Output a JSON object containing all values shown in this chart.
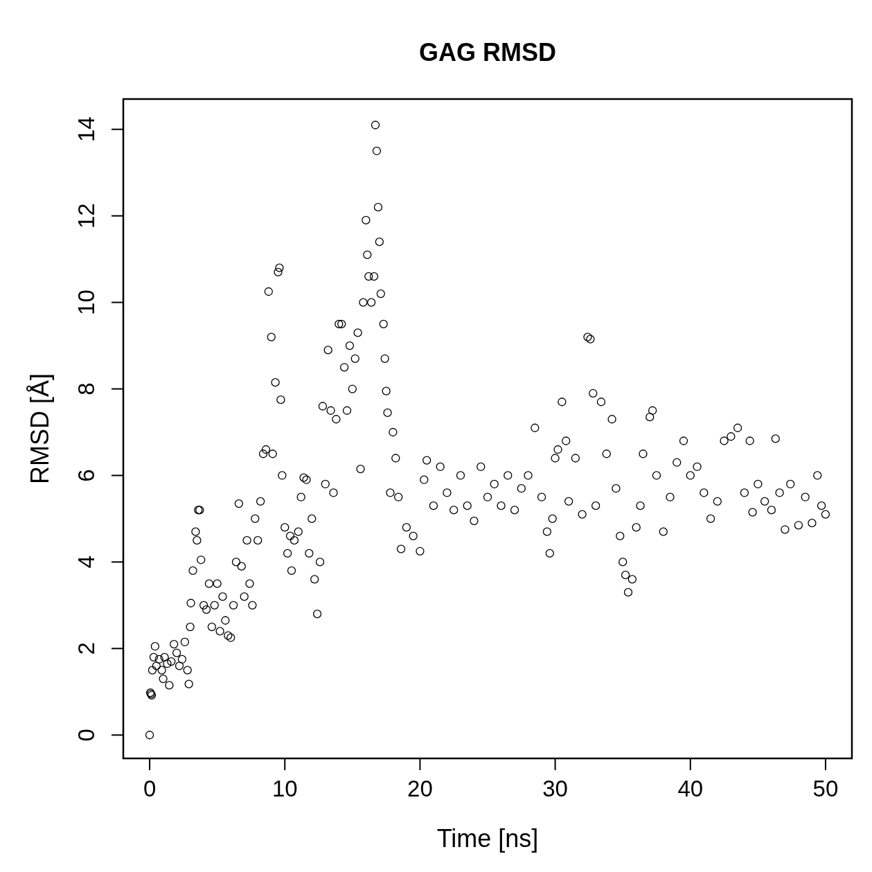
{
  "chart_data": {
    "type": "scatter",
    "title": "GAG RMSD",
    "xlabel": "Time [ns]",
    "ylabel": "RMSD [Å]",
    "marker": "circle",
    "color": "#000000",
    "xlim": [
      -1.95,
      51.95
    ],
    "ylim": [
      -0.54,
      14.7
    ],
    "xticks": [
      0,
      10,
      20,
      30,
      40,
      50
    ],
    "yticks": [
      0,
      2,
      4,
      6,
      8,
      10,
      12,
      14
    ],
    "x": [
      0,
      0.05,
      0.1,
      0.15,
      0.2,
      0.3,
      0.4,
      0.5,
      0.7,
      0.9,
      1.0,
      1.1,
      1.3,
      1.45,
      1.6,
      1.8,
      2.0,
      2.2,
      2.4,
      2.6,
      2.8,
      2.9,
      3.0,
      3.05,
      3.2,
      3.4,
      3.5,
      3.6,
      3.7,
      3.8,
      4.0,
      4.2,
      4.4,
      4.6,
      4.8,
      5.0,
      5.2,
      5.4,
      5.6,
      5.8,
      6.0,
      6.2,
      6.4,
      6.6,
      6.8,
      7.0,
      7.2,
      7.4,
      7.6,
      7.8,
      8.0,
      8.2,
      8.4,
      8.6,
      8.8,
      9.0,
      9.1,
      9.3,
      9.5,
      9.6,
      9.7,
      9.8,
      10.0,
      10.2,
      10.4,
      10.5,
      10.7,
      11.0,
      11.2,
      11.4,
      11.6,
      11.8,
      12.0,
      12.2,
      12.4,
      12.6,
      12.8,
      13.0,
      13.2,
      13.4,
      13.6,
      13.8,
      14.0,
      14.2,
      14.4,
      14.6,
      14.8,
      15.0,
      15.2,
      15.4,
      15.6,
      15.8,
      16.0,
      16.1,
      16.2,
      16.4,
      16.6,
      16.7,
      16.8,
      16.9,
      17.0,
      17.1,
      17.3,
      17.4,
      17.5,
      17.6,
      17.8,
      18.0,
      18.2,
      18.4,
      18.6,
      19.0,
      19.5,
      20.0,
      20.3,
      20.5,
      21.0,
      21.5,
      22.0,
      22.5,
      23.0,
      23.5,
      24.0,
      24.5,
      25.0,
      25.5,
      26.0,
      26.5,
      27.0,
      27.5,
      28.0,
      28.5,
      29.0,
      29.4,
      29.6,
      29.8,
      30.0,
      30.2,
      30.5,
      30.8,
      31.0,
      31.5,
      32.0,
      32.4,
      32.6,
      32.8,
      33.0,
      33.4,
      33.8,
      34.2,
      34.5,
      34.8,
      35.0,
      35.2,
      35.4,
      35.7,
      36.0,
      36.3,
      36.5,
      37.0,
      37.2,
      37.5,
      38.0,
      38.5,
      39.0,
      39.5,
      40.0,
      40.5,
      41.0,
      41.5,
      42.0,
      42.5,
      43.0,
      43.5,
      44.0,
      44.4,
      44.6,
      45.0,
      45.5,
      46.0,
      46.3,
      46.6,
      47.0,
      47.4,
      48.0,
      48.5,
      49.0,
      49.4,
      49.7,
      50.0
    ],
    "values": [
      0,
      0.98,
      0.95,
      0.92,
      1.5,
      1.8,
      2.05,
      1.6,
      1.75,
      1.5,
      1.3,
      1.8,
      1.65,
      1.15,
      1.7,
      2.1,
      1.9,
      1.6,
      1.75,
      2.15,
      1.5,
      1.18,
      2.5,
      3.05,
      3.8,
      4.7,
      4.5,
      5.2,
      5.2,
      4.05,
      3.0,
      2.9,
      3.5,
      2.5,
      3.0,
      3.5,
      2.4,
      3.2,
      2.65,
      2.3,
      2.25,
      3.0,
      4.0,
      5.35,
      3.9,
      3.2,
      4.5,
      3.5,
      3.0,
      5.0,
      4.5,
      5.4,
      6.5,
      6.6,
      10.25,
      9.2,
      6.5,
      8.15,
      10.7,
      10.8,
      7.75,
      6.0,
      4.8,
      4.2,
      4.6,
      3.8,
      4.5,
      4.7,
      5.5,
      5.95,
      5.9,
      4.2,
      5.0,
      3.6,
      2.8,
      4.0,
      7.6,
      5.8,
      8.9,
      7.5,
      5.6,
      7.3,
      9.5,
      9.5,
      8.5,
      7.5,
      9.0,
      8.0,
      8.7,
      9.3,
      6.15,
      10.0,
      11.9,
      11.1,
      10.6,
      10.0,
      10.6,
      14.1,
      13.5,
      12.2,
      11.4,
      10.2,
      9.5,
      8.7,
      7.95,
      7.45,
      5.6,
      7.0,
      6.4,
      5.5,
      4.3,
      4.8,
      4.6,
      4.25,
      5.9,
      6.35,
      5.3,
      6.2,
      5.6,
      5.2,
      6.0,
      5.3,
      4.95,
      6.2,
      5.5,
      5.8,
      5.3,
      6.0,
      5.2,
      5.7,
      6.0,
      7.1,
      5.5,
      4.7,
      4.2,
      5.0,
      6.4,
      6.6,
      7.7,
      6.8,
      5.4,
      6.4,
      5.1,
      9.2,
      9.15,
      7.9,
      5.3,
      7.7,
      6.5,
      7.3,
      5.7,
      4.6,
      4.0,
      3.7,
      3.3,
      3.6,
      4.8,
      5.3,
      6.5,
      7.35,
      7.5,
      6.0,
      4.7,
      5.5,
      6.3,
      6.8,
      6.0,
      6.2,
      5.6,
      5.0,
      5.4,
      6.8,
      6.9,
      7.1,
      5.6,
      6.8,
      5.15,
      5.8,
      5.4,
      5.2,
      6.85,
      5.6,
      4.75,
      5.8,
      4.85,
      5.5,
      4.9,
      6.0,
      5.3,
      5.1
    ]
  }
}
